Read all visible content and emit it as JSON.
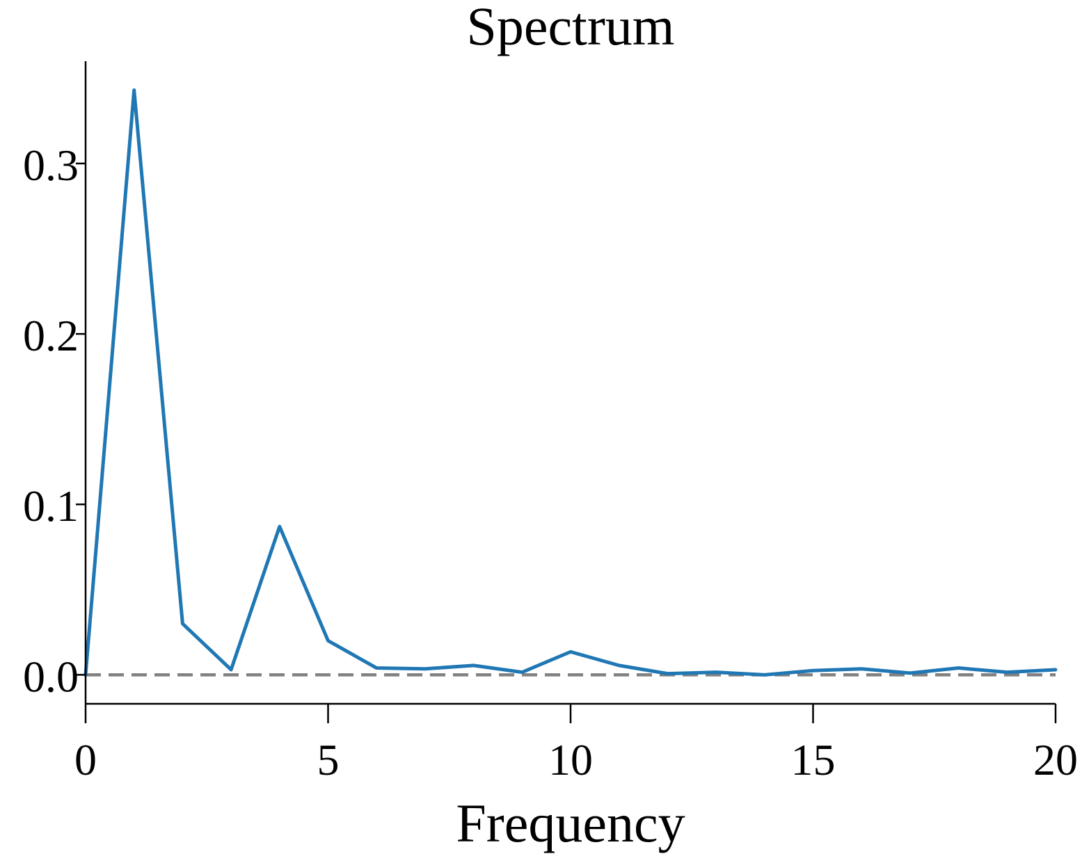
{
  "chart_data": {
    "type": "line",
    "title": "Spectrum",
    "xlabel": "Frequency",
    "ylabel": "",
    "xlim": [
      0,
      20
    ],
    "ylim": [
      -0.017,
      0.36
    ],
    "xticks": [
      0,
      5,
      10,
      15,
      20
    ],
    "xtick_labels": [
      "0",
      "5",
      "10",
      "15",
      "20"
    ],
    "yticks": [
      0.0,
      0.1,
      0.2,
      0.3
    ],
    "ytick_labels": [
      "0.0",
      "0.1",
      "0.2",
      "0.3"
    ],
    "grid": false,
    "reference_line": {
      "y": 0.0,
      "style": "dashed",
      "color": "#808080"
    },
    "series": [
      {
        "color": "#1f77b4",
        "x": [
          0,
          1,
          2,
          3,
          4,
          5,
          6,
          7,
          8,
          9,
          10,
          11,
          12,
          13,
          14,
          15,
          16,
          17,
          18,
          19,
          20
        ],
        "y": [
          0.0,
          0.343,
          0.03,
          0.003,
          0.087,
          0.02,
          0.004,
          0.0035,
          0.0055,
          0.0015,
          0.0135,
          0.0055,
          0.0007,
          0.0015,
          0.0,
          0.0025,
          0.0035,
          0.001,
          0.004,
          0.0015,
          0.003
        ]
      }
    ]
  }
}
